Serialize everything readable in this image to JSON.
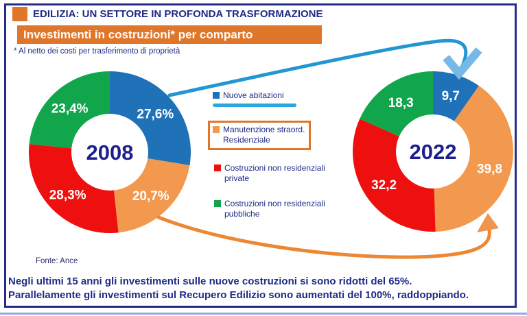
{
  "header": {
    "title": "EDILIZIA: UN SETTORE IN PROFONDA TRASFORMAZIONE",
    "banner": "Investimenti in costruzioni* per comparto",
    "footnote": "* Al netto dei costi per trasferimento di proprietà"
  },
  "legend": {
    "items": [
      {
        "label": "Nuove abitazioni",
        "color": "#1f72b8",
        "underlined": true
      },
      {
        "line1": "Manutenzione straord.",
        "line2": "Residenziale",
        "color": "#f2994f",
        "boxed": true
      },
      {
        "line1": "Costruzioni non residenziali",
        "line2": "private",
        "color": "#ee0f0f"
      },
      {
        "line1": "Costruzioni non residenziali",
        "line2": "pubbliche",
        "color": "#12a64c"
      }
    ]
  },
  "chart_data": [
    {
      "type": "pie",
      "subtype": "donut",
      "title": "2008",
      "categories": [
        "Nuove abitazioni",
        "Manutenzione straord. Residenziale",
        "Costruzioni non residenziali private",
        "Costruzioni non residenziali pubbliche"
      ],
      "values": [
        27.6,
        20.7,
        28.3,
        23.4
      ],
      "labels": [
        "27,6%",
        "20,7%",
        "28,3%",
        "23,4%"
      ],
      "colors": [
        "#1f72b8",
        "#f2994f",
        "#ee0f0f",
        "#12a64c"
      ],
      "units": "percent share",
      "start_angle_deg": 0,
      "clockwise": true
    },
    {
      "type": "pie",
      "subtype": "donut",
      "title": "2022",
      "categories": [
        "Nuove abitazioni",
        "Manutenzione straord. Residenziale",
        "Costruzioni non residenziali private",
        "Costruzioni non residenziali pubbliche"
      ],
      "values": [
        9.7,
        39.8,
        32.2,
        18.3
      ],
      "labels": [
        "9,7",
        "39,8",
        "32,2",
        "18,3"
      ],
      "colors": [
        "#1f72b8",
        "#f2994f",
        "#ee0f0f",
        "#12a64c"
      ],
      "units": "percent share",
      "start_angle_deg": 0,
      "clockwise": true
    }
  ],
  "source": "Fonte: Ance",
  "footer": {
    "line1": "Negli ultimi 15 anni gli investimenti sulle nuove costruzioni si sono ridotti del 65%.",
    "line2": "Parallelamente gli investimenti sul Recupero Edilizio sono aumentati del 100%, raddoppiando."
  },
  "colors": {
    "navy_text": "#1f2a85",
    "frame_border": "#242c87",
    "banner_orange": "#e0762a",
    "segment_blue": "#1f72b8",
    "segment_orange": "#f2994f",
    "segment_red": "#ee0f0f",
    "segment_green": "#12a64c",
    "cyan_underline": "#29a8e0",
    "arrow_blue": "#2296d4",
    "arrow_blue_head": "#74b9e8",
    "arrow_orange": "#ed8733",
    "arrow_orange_head": "#f0944e",
    "bottom_edge_line": "#95a5e8",
    "year_text": "#1c1f8c"
  }
}
